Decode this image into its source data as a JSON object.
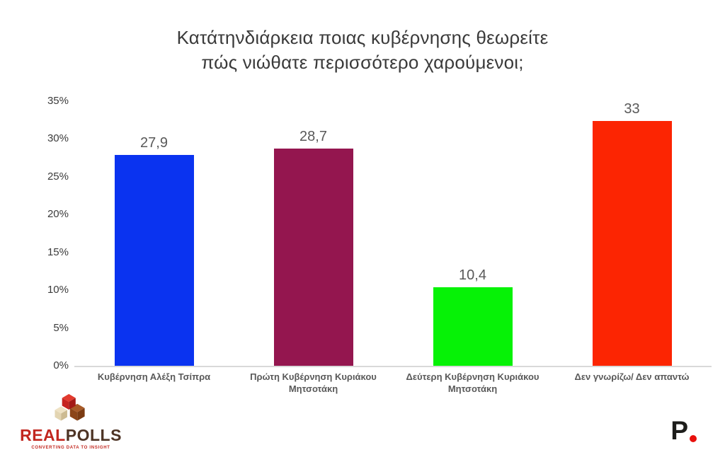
{
  "chart_data": {
    "type": "bar",
    "title": "Κατάτηνδιάρκεια ποιας κυβέρνησης θεωρείτε πώς νιώθατε περισσότερο χαρούμενοι;",
    "categories": [
      "Κυβέρνηση  Αλέξη Τσίπρα",
      "Πρώτη Κυβέρνηση  Κυριάκου Μητσοτάκη",
      "Δεύτερη Κυβέρνηση  Κυριάκου Μητσοτάκη",
      "Δεν γνωρίζω/ Δεν απαντώ"
    ],
    "values": [
      27.9,
      28.7,
      10.4,
      33
    ],
    "value_labels": [
      "27,9",
      "28,7",
      "10,4",
      "33"
    ],
    "bar_colors": [
      "#0a33f0",
      "#94164f",
      "#06f206",
      "#fc2502"
    ],
    "xlabel": "",
    "ylabel": "",
    "ylim": [
      0,
      35
    ],
    "ytick_step": 5,
    "yticks": [
      "0%",
      "5%",
      "10%",
      "15%",
      "20%",
      "25%",
      "30%",
      "35%"
    ],
    "grid": false,
    "legend": false,
    "value_label_color": "#595959",
    "axis_line_color": "#d9d9d9"
  },
  "footer": {
    "realpolls": {
      "word_primary": "REAL",
      "word_secondary": "POLLS",
      "tagline": "CONVERTING DATA TO INSIGHT",
      "primary_color": "#c2271f",
      "secondary_color": "#4e3425"
    },
    "publisher": {
      "letter": "P",
      "letter_color": "#1d1d1b",
      "dot_color": "#e8100c"
    }
  }
}
